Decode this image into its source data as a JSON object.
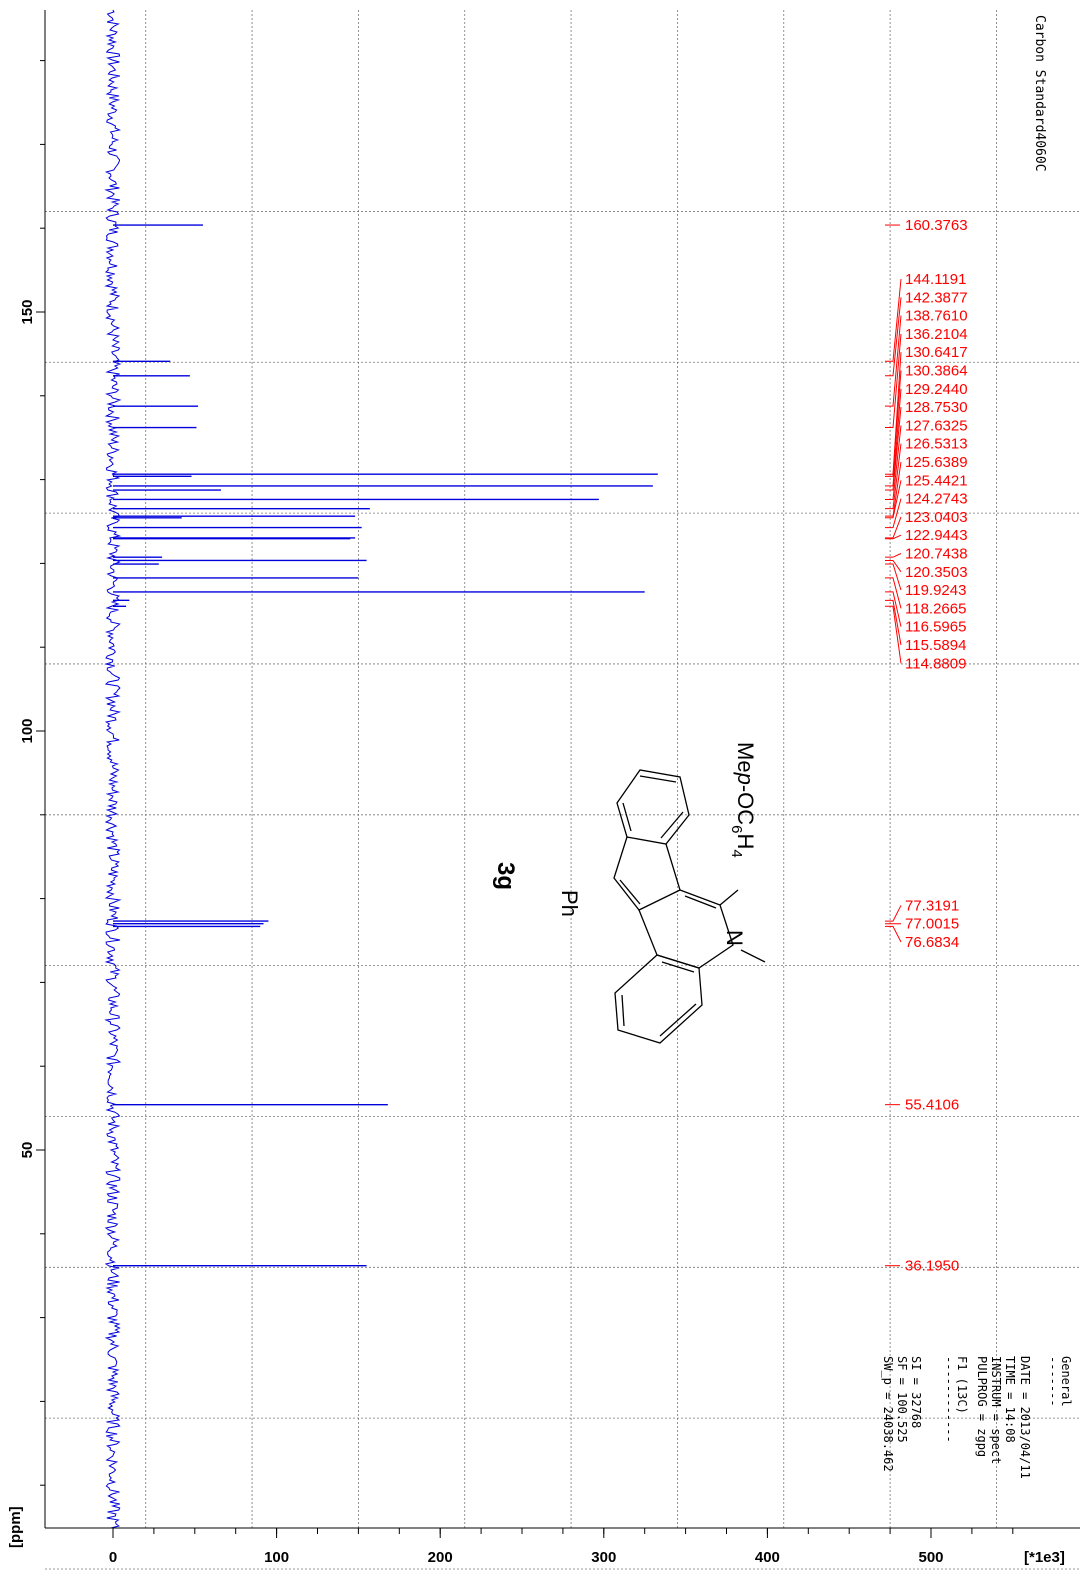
{
  "chart_data": {
    "type": "line",
    "orientation": "rotated",
    "spectrum_color": "#0000dd",
    "label_color": "#ff0000",
    "ppm_axis": {
      "label": "[ppm]",
      "range": [
        -12,
        186
      ],
      "ticks": [
        {
          "value": 150,
          "label": "150"
        },
        {
          "value": 100,
          "label": "100"
        },
        {
          "value": 50,
          "label": "50"
        }
      ],
      "minor_step": 10,
      "grid_values": [
        162,
        144,
        126,
        108,
        90,
        72,
        54,
        36,
        18,
        0
      ]
    },
    "intensity_axis": {
      "label": "[*1e3]",
      "range": [
        -5,
        445
      ],
      "ticks": [
        {
          "value": 0,
          "label": "0"
        },
        {
          "value": 100,
          "label": "100"
        },
        {
          "value": 200,
          "label": "200"
        },
        {
          "value": 300,
          "label": "300"
        },
        {
          "value": 400,
          "label": "400"
        },
        {
          "value": 500,
          "label": "500"
        }
      ],
      "minor_step": 25,
      "grid_values": [
        20,
        85,
        150,
        215,
        280,
        345,
        410,
        475,
        540
      ]
    },
    "peaks": [
      {
        "ppm": 160.3763,
        "intensity": 55
      },
      {
        "ppm": 144.1191,
        "intensity": 35
      },
      {
        "ppm": 142.3877,
        "intensity": 47
      },
      {
        "ppm": 138.761,
        "intensity": 52
      },
      {
        "ppm": 136.2104,
        "intensity": 51
      },
      {
        "ppm": 130.6417,
        "intensity": 333
      },
      {
        "ppm": 130.3864,
        "intensity": 48
      },
      {
        "ppm": 129.244,
        "intensity": 330
      },
      {
        "ppm": 128.753,
        "intensity": 66
      },
      {
        "ppm": 127.6325,
        "intensity": 297
      },
      {
        "ppm": 126.5313,
        "intensity": 157
      },
      {
        "ppm": 125.6389,
        "intensity": 148
      },
      {
        "ppm": 125.4421,
        "intensity": 42
      },
      {
        "ppm": 124.2743,
        "intensity": 152
      },
      {
        "ppm": 123.0403,
        "intensity": 148
      },
      {
        "ppm": 122.9443,
        "intensity": 145
      },
      {
        "ppm": 120.7438,
        "intensity": 30
      },
      {
        "ppm": 120.3503,
        "intensity": 155
      },
      {
        "ppm": 119.9243,
        "intensity": 28
      },
      {
        "ppm": 118.2665,
        "intensity": 150
      },
      {
        "ppm": 116.5965,
        "intensity": 325
      },
      {
        "ppm": 115.5894,
        "intensity": 10
      },
      {
        "ppm": 114.8809,
        "intensity": 8
      },
      {
        "ppm": 77.3191,
        "intensity": 95
      },
      {
        "ppm": 77.0015,
        "intensity": 92
      },
      {
        "ppm": 76.6834,
        "intensity": 90
      },
      {
        "ppm": 55.4106,
        "intensity": 168
      },
      {
        "ppm": 36.195,
        "intensity": 155
      }
    ],
    "label_groups": [
      {
        "labels": [
          "160.3763"
        ],
        "ppms": [
          160.3763
        ],
        "group": "single"
      },
      {
        "labels": [
          "144.1191",
          "142.3877",
          "138.7610",
          "136.2104",
          "130.6417",
          "130.3864",
          "129.2440",
          "128.7530",
          "127.6325",
          "126.5313",
          "125.6389",
          "125.4421",
          "124.2743",
          "123.0403",
          "122.9443",
          "120.7438",
          "120.3503",
          "119.9243",
          "118.2665",
          "116.5965",
          "115.5894",
          "114.8809"
        ],
        "ppms": [
          144.1191,
          142.3877,
          138.761,
          136.2104,
          130.6417,
          130.3864,
          129.244,
          128.753,
          127.6325,
          126.5313,
          125.6389,
          125.4421,
          124.2743,
          123.0403,
          122.9443,
          120.7438,
          120.3503,
          119.9243,
          118.2665,
          116.5965,
          115.5894,
          114.8809
        ],
        "group": "aromatic"
      },
      {
        "labels": [
          "77.3191",
          "77.0015",
          "76.6834"
        ],
        "ppms": [
          77.3191,
          77.0015,
          76.6834
        ],
        "group": "solvent"
      },
      {
        "labels": [
          "55.4106"
        ],
        "ppms": [
          55.4106
        ],
        "group": "single"
      },
      {
        "labels": [
          "36.1950"
        ],
        "ppms": [
          36.195
        ],
        "group": "single"
      }
    ]
  },
  "header_text": "Carbon Standard4060C",
  "compound": {
    "id": "3g",
    "substituent_top": "Me",
    "substituent_italic": "p",
    "substituent_rest": "-OC",
    "subscript_6": "6",
    "h_text": "H",
    "subscript_4": "4",
    "n_atom": "N",
    "ph": "Ph"
  },
  "params": {
    "general_title": "General",
    "general_underline": "-------",
    "date": "DATE = 2013/04/11",
    "time": "TIME = 14:08",
    "instrum": "INSTRUM = spect",
    "pulprog": "PULPROG = zgpg",
    "f1_title": "F1 (13C)",
    "f1_underline": "------------",
    "si": "SI = 32768",
    "sf": "SF = 100.525",
    "sw": "SW_p = 24038.462"
  }
}
